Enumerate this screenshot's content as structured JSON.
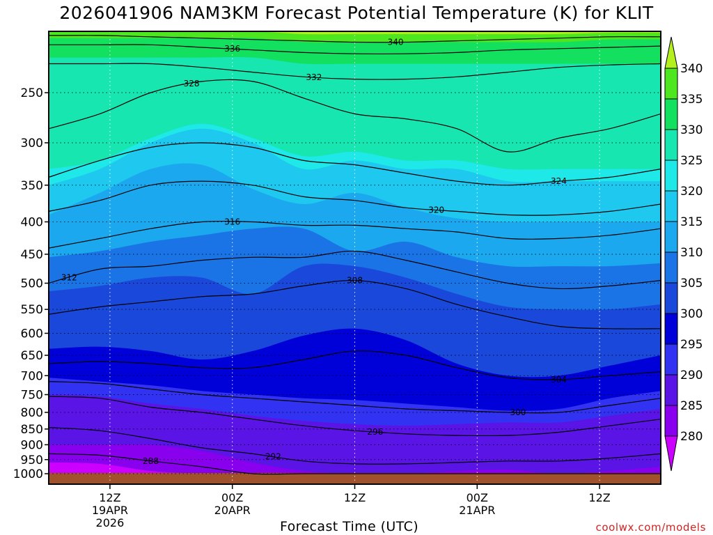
{
  "chart_data": {
    "type": "contour",
    "title": "2026041906 NAM3KM Forecast Potential Temperature (K) for KLIT",
    "xlabel": "Forecast Time (UTC)",
    "ylabel": "",
    "credit": "coolwx.com/models",
    "x_ticks": [
      {
        "hour": 6,
        "label": "12Z",
        "sub1": "19APR",
        "sub2": "2026"
      },
      {
        "hour": 18,
        "label": "00Z",
        "sub1": "20APR",
        "sub2": ""
      },
      {
        "hour": 30,
        "label": "12Z",
        "sub1": "",
        "sub2": ""
      },
      {
        "hour": 42,
        "label": "00Z",
        "sub1": "21APR",
        "sub2": ""
      },
      {
        "hour": 54,
        "label": "12Z",
        "sub1": "",
        "sub2": ""
      }
    ],
    "xlim_hours": [
      0,
      60
    ],
    "y_ticks": [
      250,
      300,
      350,
      400,
      450,
      500,
      550,
      600,
      650,
      700,
      750,
      800,
      850,
      900,
      950,
      1000
    ],
    "y_tick_labels": [
      "250",
      "300",
      "350",
      "400",
      "450",
      "500",
      "550",
      "600",
      "650",
      "700",
      "750",
      "800",
      "850",
      "900",
      "950",
      "1000"
    ],
    "ylim_hpa": [
      200,
      1000
    ],
    "y_scale": "log-pressure",
    "colorbar": {
      "levels": [
        280,
        285,
        290,
        295,
        300,
        305,
        310,
        315,
        320,
        325,
        330,
        335,
        340
      ],
      "labels": [
        "280",
        "285",
        "290",
        "295",
        "300",
        "305",
        "310",
        "315",
        "320",
        "325",
        "330",
        "335",
        "340"
      ],
      "colors": [
        "#cc00ff",
        "#8800ee",
        "#5a14e6",
        "#3232f2",
        "#0000d8",
        "#1a48da",
        "#1b74e6",
        "#1ba8ee",
        "#1ec8ee",
        "#1ee8e8",
        "#18e6b0",
        "#14e060",
        "#4ee61e",
        "#b4f01e"
      ]
    },
    "fill_bands": [
      {
        "level": 280,
        "color": "#cc00ff",
        "pressure_by_hour": [
          1000,
          1000,
          1000,
          1000,
          1000,
          1000,
          1000,
          1000,
          1000,
          1000,
          1000,
          1000,
          1000
        ]
      },
      {
        "level": 285,
        "color": "#8800ee",
        "pressure_by_hour": [
          960,
          965,
          990,
          1000,
          1000,
          1000,
          1000,
          1000,
          1000,
          1000,
          1000,
          1000,
          1000
        ]
      },
      {
        "level": 290,
        "color": "#5a14e6",
        "pressure_by_hour": [
          900,
          900,
          900,
          920,
          960,
          990,
          1000,
          1000,
          990,
          985,
          1000,
          990,
          975
        ]
      },
      {
        "level": 295,
        "color": "#3232f2",
        "pressure_by_hour": [
          750,
          755,
          775,
          790,
          810,
          825,
          835,
          840,
          835,
          830,
          830,
          810,
          790
        ]
      },
      {
        "level": 300,
        "color": "#0000d8",
        "pressure_by_hour": [
          705,
          715,
          725,
          740,
          750,
          760,
          765,
          775,
          785,
          795,
          790,
          760,
          740
        ]
      },
      {
        "level": 305,
        "color": "#1a48da",
        "pressure_by_hour": [
          635,
          630,
          640,
          660,
          640,
          605,
          590,
          615,
          670,
          700,
          700,
          675,
          650
        ]
      },
      {
        "level": 310,
        "color": "#1b74e6",
        "pressure_by_hour": [
          515,
          505,
          490,
          490,
          520,
          470,
          470,
          490,
          520,
          545,
          550,
          550,
          540
        ]
      },
      {
        "level": 315,
        "color": "#1ba8ee",
        "pressure_by_hour": [
          455,
          445,
          430,
          420,
          410,
          410,
          445,
          430,
          455,
          470,
          470,
          470,
          465
        ]
      },
      {
        "level": 320,
        "color": "#1ec8ee",
        "pressure_by_hour": [
          390,
          360,
          330,
          325,
          355,
          375,
          360,
          380,
          395,
          400,
          400,
          400,
          400
        ]
      },
      {
        "level": 325,
        "color": "#1ee8e8",
        "pressure_by_hour": [
          350,
          330,
          300,
          285,
          300,
          330,
          320,
          330,
          330,
          345,
          345,
          345,
          345
        ]
      },
      {
        "level": 330,
        "color": "#18e6b0",
        "pressure_by_hour": [
          330,
          320,
          295,
          280,
          295,
          315,
          310,
          320,
          320,
          330,
          330,
          330,
          330
        ]
      },
      {
        "level": 335,
        "color": "#14e060",
        "pressure_by_hour": [
          220,
          220,
          220,
          220,
          220,
          225,
          225,
          225,
          225,
          225,
          225,
          225,
          225
        ]
      },
      {
        "level": 340,
        "color": "#4ee61e",
        "pressure_by_hour": [
          205,
          205,
          205,
          205,
          205,
          208,
          208,
          208,
          208,
          208,
          208,
          206,
          206
        ]
      },
      {
        "level": 345,
        "color": "#b4f01e",
        "pressure_by_hour": [
          200,
          200,
          200,
          200,
          200,
          202,
          202,
          202,
          202,
          202,
          202,
          201,
          201
        ]
      }
    ],
    "contours": [
      {
        "level": 288,
        "label": "288",
        "label_hour": 10,
        "pressure_by_hour": [
          930,
          935,
          955,
          975,
          1000,
          1000,
          1000,
          1000,
          1000,
          1000,
          1000,
          1000,
          1000
        ]
      },
      {
        "level": 292,
        "label": "292",
        "label_hour": 22,
        "pressure_by_hour": [
          845,
          855,
          880,
          910,
          930,
          955,
          965,
          965,
          960,
          955,
          955,
          945,
          930
        ]
      },
      {
        "level": 296,
        "label": "296",
        "label_hour": 32,
        "pressure_by_hour": [
          755,
          760,
          785,
          800,
          820,
          840,
          855,
          865,
          870,
          870,
          860,
          840,
          820
        ]
      },
      {
        "level": 300,
        "label": "300",
        "label_hour": 46,
        "pressure_by_hour": [
          715,
          720,
          735,
          750,
          760,
          770,
          780,
          790,
          795,
          800,
          800,
          780,
          760
        ]
      },
      {
        "level": 304,
        "label": "304",
        "label_hour": 50,
        "pressure_by_hour": [
          670,
          665,
          670,
          680,
          680,
          660,
          640,
          650,
          680,
          705,
          710,
          700,
          690
        ]
      },
      {
        "level": 308,
        "label": "308",
        "label_hour": 30,
        "pressure_by_hour": [
          560,
          545,
          535,
          525,
          520,
          505,
          495,
          510,
          540,
          565,
          585,
          590,
          590
        ]
      },
      {
        "level": 312,
        "label": "312",
        "label_hour": 2,
        "pressure_by_hour": [
          500,
          475,
          470,
          460,
          455,
          455,
          445,
          460,
          480,
          500,
          510,
          505,
          495
        ]
      },
      {
        "level": 316,
        "label": "316",
        "label_hour": 18,
        "pressure_by_hour": [
          440,
          425,
          410,
          400,
          400,
          405,
          405,
          410,
          415,
          425,
          425,
          420,
          410
        ]
      },
      {
        "level": 320,
        "label": "320",
        "label_hour": 38,
        "pressure_by_hour": [
          385,
          370,
          350,
          345,
          350,
          365,
          370,
          380,
          385,
          390,
          390,
          385,
          375
        ]
      },
      {
        "level": 324,
        "label": "324",
        "label_hour": 50,
        "pressure_by_hour": [
          340,
          320,
          305,
          300,
          305,
          320,
          325,
          335,
          345,
          350,
          345,
          340,
          330
        ]
      },
      {
        "level": 328,
        "label": "328",
        "label_hour": 14,
        "pressure_by_hour": [
          285,
          270,
          250,
          240,
          240,
          255,
          270,
          275,
          285,
          310,
          295,
          285,
          270
        ]
      },
      {
        "level": 332,
        "label": "332",
        "label_hour": 26,
        "pressure_by_hour": [
          225,
          225,
          225,
          228,
          232,
          236,
          238,
          238,
          236,
          232,
          228,
          226,
          225
        ]
      },
      {
        "level": 336,
        "label": "336",
        "label_hour": 18,
        "pressure_by_hour": [
          210,
          210,
          210,
          212,
          214,
          216,
          217,
          217,
          216,
          214,
          213,
          212,
          211
        ]
      },
      {
        "level": 340,
        "label": "340",
        "label_hour": 34,
        "pressure_by_hour": [
          203,
          203,
          204,
          205,
          206,
          207,
          208,
          208,
          207,
          206,
          205,
          204,
          204
        ]
      }
    ]
  }
}
